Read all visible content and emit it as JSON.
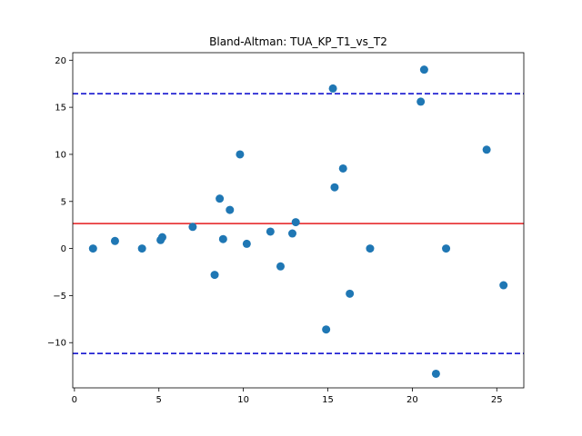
{
  "chart_data": {
    "type": "scatter",
    "title": "Bland-Altman: TUA_KP_T1_vs_T2",
    "xlabel": "",
    "ylabel": "",
    "xlim": [
      -0.1,
      26.6
    ],
    "ylim": [
      -14.8,
      20.8
    ],
    "xticks": [
      0,
      5,
      10,
      15,
      20,
      25
    ],
    "yticks": [
      -10,
      -5,
      0,
      5,
      10,
      15,
      20
    ],
    "grid": false,
    "point_color": "#1f77b4",
    "mean_line": {
      "value": 2.65,
      "color": "#e41a1c"
    },
    "limit_lines": {
      "values": [
        16.45,
        -11.15
      ],
      "color": "#0000cc",
      "style": "dashed"
    },
    "points": [
      {
        "x": 1.1,
        "y": 0.0
      },
      {
        "x": 2.4,
        "y": 0.8
      },
      {
        "x": 4.0,
        "y": 0.0
      },
      {
        "x": 5.1,
        "y": 0.9
      },
      {
        "x": 5.2,
        "y": 1.2
      },
      {
        "x": 7.0,
        "y": 2.3
      },
      {
        "x": 8.3,
        "y": -2.8
      },
      {
        "x": 8.6,
        "y": 5.3
      },
      {
        "x": 8.8,
        "y": 1.0
      },
      {
        "x": 9.2,
        "y": 4.1
      },
      {
        "x": 9.8,
        "y": 10.0
      },
      {
        "x": 10.2,
        "y": 0.5
      },
      {
        "x": 11.6,
        "y": 1.8
      },
      {
        "x": 12.2,
        "y": -1.9
      },
      {
        "x": 12.9,
        "y": 1.6
      },
      {
        "x": 13.1,
        "y": 2.8
      },
      {
        "x": 14.9,
        "y": -8.6
      },
      {
        "x": 15.3,
        "y": 17.0
      },
      {
        "x": 15.4,
        "y": 6.5
      },
      {
        "x": 15.9,
        "y": 8.5
      },
      {
        "x": 16.3,
        "y": -4.8
      },
      {
        "x": 17.5,
        "y": 0.0
      },
      {
        "x": 20.5,
        "y": 15.6
      },
      {
        "x": 20.7,
        "y": 19.0
      },
      {
        "x": 21.4,
        "y": -13.3
      },
      {
        "x": 22.0,
        "y": 0.0
      },
      {
        "x": 24.4,
        "y": 10.5
      },
      {
        "x": 25.4,
        "y": -3.9
      }
    ]
  }
}
